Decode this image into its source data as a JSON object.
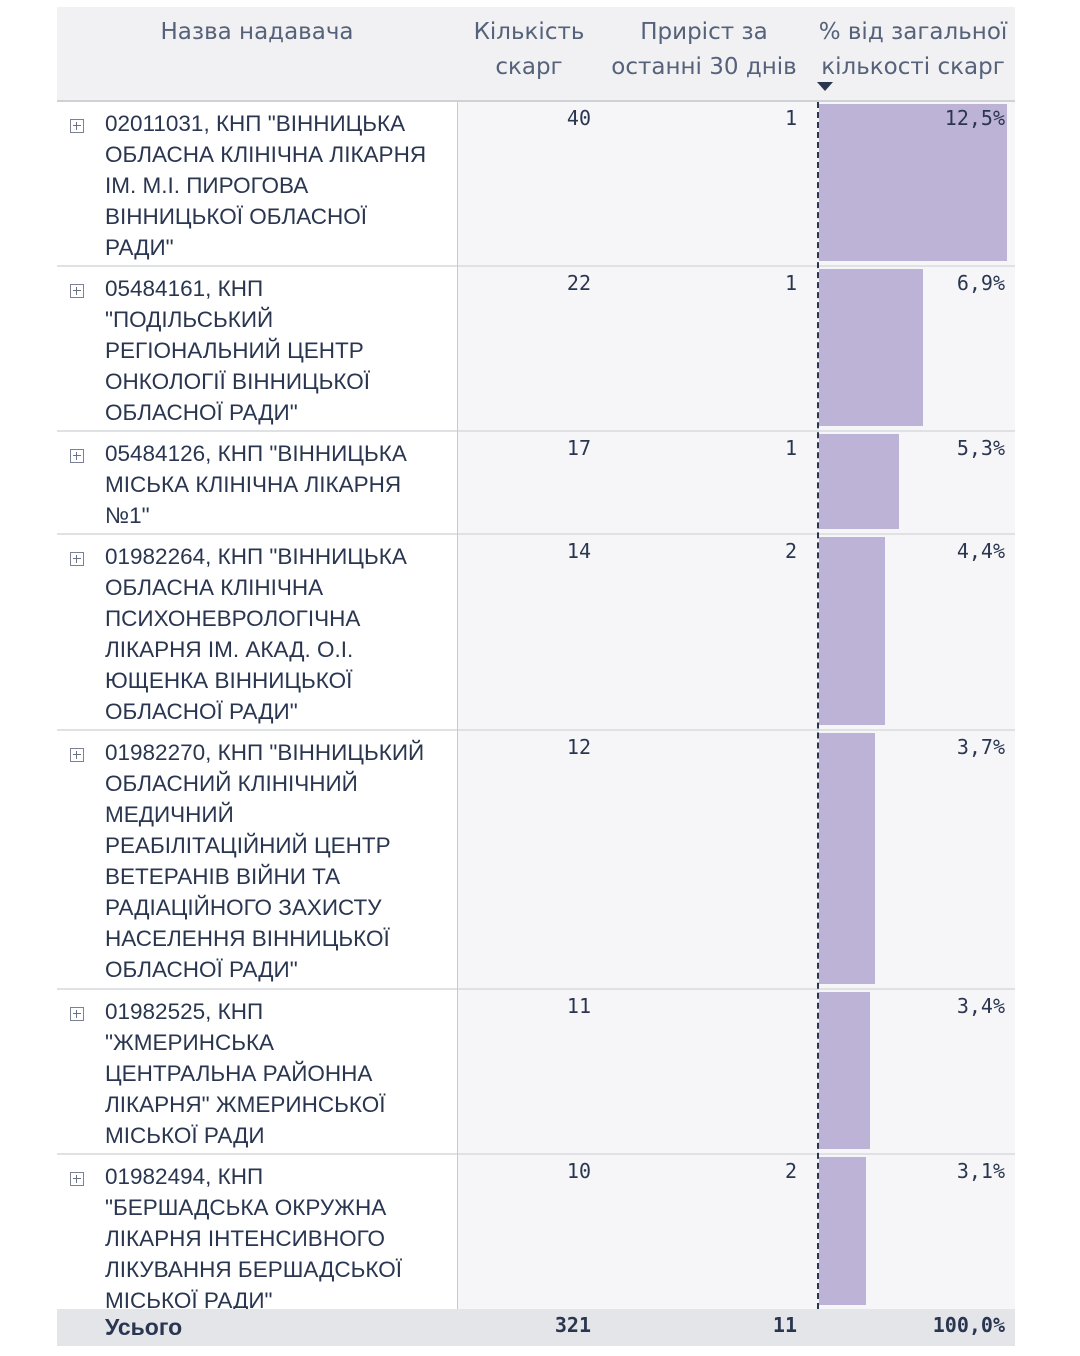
{
  "header": {
    "name_line1": "Назва надавача",
    "count_line1": "Кількість",
    "count_line2": "скарг",
    "growth_line1": "Приріст за",
    "growth_line2": "останні 30 днів",
    "pct_line1": "% від загальної",
    "pct_line2": "кількості скарг",
    "sort_icon": "sort-descending-icon"
  },
  "rows": [
    {
      "name": "02011031, КНП \"ВІННИЦЬКА\nОБЛАСНА КЛІНІЧНА ЛІКАРНЯ\nІМ. М.І. ПИРОГОВА\nВІННИЦЬКОЇ ОБЛАСНОЇ\nРАДИ\"",
      "count": "40",
      "growth": "1",
      "pct": "12,5%",
      "pct_value": 12.5
    },
    {
      "name": "05484161, КНП\n\"ПОДІЛЬСЬКИЙ\nРЕГІОНАЛЬНИЙ ЦЕНТР\nОНКОЛОГІЇ ВІННИЦЬКОЇ\nОБЛАСНОЇ РАДИ\"",
      "count": "22",
      "growth": "1",
      "pct": "6,9%",
      "pct_value": 6.9
    },
    {
      "name": "05484126, КНП \"ВІННИЦЬКА\nМІСЬКА КЛІНІЧНА ЛІКАРНЯ\n№1\"",
      "count": "17",
      "growth": "1",
      "pct": "5,3%",
      "pct_value": 5.3
    },
    {
      "name": "01982264, КНП \"ВІННИЦЬКА\nОБЛАСНА КЛІНІЧНА\nПСИХОНЕВРОЛОГІЧНА\nЛІКАРНЯ ІМ. АКАД. О.І.\nЮЩЕНКА ВІННИЦЬКОЇ\nОБЛАСНОЇ РАДИ\"",
      "count": "14",
      "growth": "2",
      "pct": "4,4%",
      "pct_value": 4.4
    },
    {
      "name": "01982270, КНП \"ВІННИЦЬКИЙ\nОБЛАСНИЙ КЛІНІЧНИЙ\nМЕДИЧНИЙ\nРЕАБІЛІТАЦІЙНИЙ ЦЕНТР\nВЕТЕРАНІВ ВІЙНИ ТА\nРАДІАЦІЙНОГО ЗАХИСТУ\nНАСЕЛЕННЯ ВІННИЦЬКОЇ\nОБЛАСНОЇ РАДИ\"",
      "count": "12",
      "growth": "",
      "pct": "3,7%",
      "pct_value": 3.7
    },
    {
      "name": "01982525, КНП\n\"ЖМЕРИНСЬКА\nЦЕНТРАЛЬНА РАЙОННА\nЛІКАРНЯ\" ЖМЕРИНСЬКОЇ\nМІСЬКОЇ РАДИ",
      "count": "11",
      "growth": "",
      "pct": "3,4%",
      "pct_value": 3.4
    },
    {
      "name": "01982494, КНП\n\"БЕРШАДСЬКА ОКРУЖНА\nЛІКАРНЯ ІНТЕНСИВНОГО\nЛІКУВАННЯ БЕРШАДСЬКОЇ\nМІСЬКОЇ РАДИ\"",
      "count": "10",
      "growth": "2",
      "pct": "3,1%",
      "pct_value": 3.1
    }
  ],
  "total": {
    "label": "Усього",
    "count": "321",
    "growth": "11",
    "pct": "100,0%"
  },
  "colors": {
    "bar": "#bdb3d6",
    "text": "#2a3650",
    "header_bg": "#f1f1f3"
  }
}
